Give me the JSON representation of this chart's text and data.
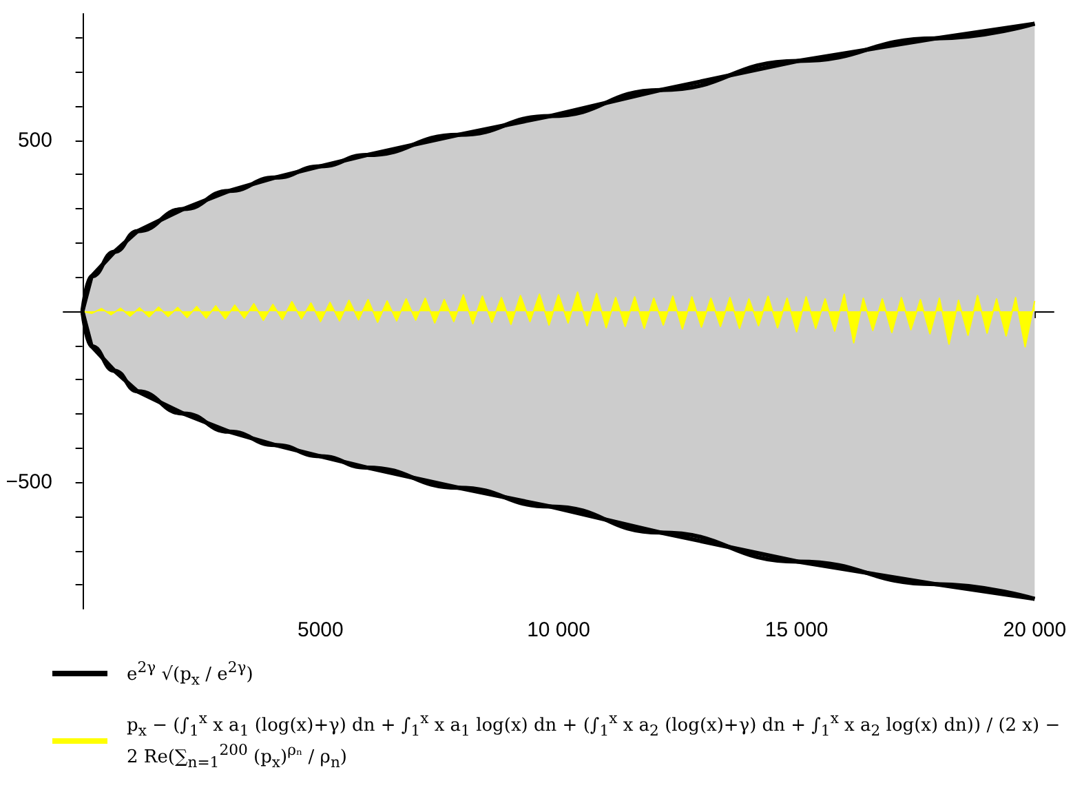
{
  "chart_data": {
    "type": "area",
    "xlim": [
      -400,
      20400
    ],
    "ylim": [
      -870,
      870
    ],
    "xticks": [
      {
        "value": 1000,
        "label": null
      },
      {
        "value": 2000,
        "label": null
      },
      {
        "value": 3000,
        "label": null
      },
      {
        "value": 4000,
        "label": null
      },
      5000,
      {
        "value": 6000,
        "label": null
      },
      {
        "value": 7000,
        "label": null
      },
      {
        "value": 8000,
        "label": null
      },
      {
        "value": 9000,
        "label": null
      },
      {
        "value": 10000,
        "label": "10 000"
      },
      {
        "value": 11000,
        "label": null
      },
      {
        "value": 12000,
        "label": null
      },
      {
        "value": 13000,
        "label": null
      },
      {
        "value": 14000,
        "label": null
      },
      {
        "value": 15000,
        "label": "15 000"
      },
      {
        "value": 16000,
        "label": null
      },
      {
        "value": 17000,
        "label": null
      },
      {
        "value": 18000,
        "label": null
      },
      {
        "value": 19000,
        "label": null
      },
      {
        "value": 20000,
        "label": "20 000"
      }
    ],
    "yticks": [
      {
        "value": -800,
        "label": null
      },
      {
        "value": -700,
        "label": null
      },
      {
        "value": -600,
        "label": null
      },
      {
        "value": -500,
        "label": "−500"
      },
      {
        "value": -400,
        "label": null
      },
      {
        "value": -300,
        "label": null
      },
      {
        "value": -200,
        "label": null
      },
      {
        "value": -100,
        "label": null
      },
      {
        "value": 100,
        "label": null
      },
      {
        "value": 200,
        "label": null
      },
      {
        "value": 300,
        "label": null
      },
      {
        "value": 400,
        "label": null
      },
      500,
      {
        "value": 600,
        "label": null
      },
      {
        "value": 700,
        "label": null
      },
      {
        "value": 800,
        "label": null
      }
    ],
    "grid": false,
    "legend": "bottom",
    "series": [
      {
        "name": "e$^{2γ}$ √(p$_{x}$ / e$^{2γ}$)",
        "color": "#000000",
        "x": [
          0,
          193,
          674,
          1156,
          2119,
          3083,
          4046,
          5000,
          5973,
          7899,
          9826,
          12139,
          15029,
          17919,
          20000
        ],
        "values": [
          0,
          102,
          174,
          234,
          299,
          352,
          391,
          424,
          457,
          516,
          571,
          647,
          732,
          798,
          841
        ]
      },
      {
        "color": "#000000",
        "x": [
          0,
          193,
          674,
          1156,
          2119,
          3083,
          4046,
          5000,
          5973,
          7899,
          9826,
          12139,
          15029,
          17919,
          20000
        ],
        "values": [
          0,
          -102,
          -174,
          -234,
          -299,
          -352,
          -391,
          -424,
          -457,
          -516,
          -571,
          -647,
          -732,
          -798,
          -841
        ]
      },
      {
        "name": "p$_{x}$ − (∫$_{1}$$^{x}$ x a$_{1}$ (log(x)+γ) dn + ∫$_{1}$$^{x}$ x a$_{1}$ log(x) dn + (∫$_{1}$$^{x}$ x a$_{2}$ (log(x)+γ) dn + ∫$_{1}$$^{x}$ x a$_{2}$ log(x) dn)) / (2 x) − 2 Re(∑$_{n=1}$$^{200}$ (p$_{x}$)$^{ρₙ}$ / ρ$_{n}$)",
        "color": "#ffff00",
        "x": [
          0,
          200,
          400,
          600,
          800,
          1000,
          1200,
          1400,
          1600,
          1800,
          2000,
          2200,
          2400,
          2600,
          2800,
          3000,
          3200,
          3400,
          3600,
          3800,
          4000,
          4200,
          4400,
          4600,
          4800,
          5000,
          5200,
          5400,
          5600,
          5800,
          6000,
          6200,
          6400,
          6600,
          6800,
          7000,
          7200,
          7400,
          7600,
          7800,
          8000,
          8200,
          8400,
          8600,
          8800,
          9000,
          9200,
          9400,
          9600,
          9800,
          10000,
          10200,
          10400,
          10600,
          10800,
          11000,
          11200,
          11400,
          11600,
          11800,
          12000,
          12200,
          12400,
          12600,
          12800,
          13000,
          13200,
          13400,
          13600,
          13800,
          14000,
          14200,
          14400,
          14600,
          14800,
          15000,
          15200,
          15400,
          15600,
          15800,
          16000,
          16200,
          16400,
          16600,
          16800,
          17000,
          17200,
          17400,
          17600,
          17800,
          18000,
          18200,
          18400,
          18600,
          18800,
          19000,
          19200,
          19400,
          19600,
          19800,
          20000
        ],
        "values": [
          0,
          -6,
          8,
          -10,
          9,
          -14,
          10,
          -16,
          12,
          -15,
          11,
          -18,
          14,
          -20,
          16,
          -22,
          18,
          -20,
          22,
          -26,
          20,
          -24,
          28,
          -22,
          24,
          -30,
          26,
          -28,
          32,
          -25,
          34,
          -32,
          30,
          -28,
          36,
          -26,
          38,
          -34,
          34,
          -30,
          48,
          -36,
          44,
          -32,
          40,
          -38,
          46,
          -30,
          50,
          -40,
          48,
          -34,
          56,
          -42,
          52,
          -48,
          40,
          -44,
          42,
          -50,
          38,
          -40,
          44,
          -52,
          42,
          -46,
          38,
          -44,
          40,
          -50,
          36,
          -42,
          44,
          -48,
          38,
          -60,
          42,
          -50,
          36,
          -58,
          50,
          -92,
          38,
          -56,
          36,
          -62,
          40,
          -54,
          34,
          -66,
          38,
          -96,
          32,
          -70,
          46,
          -64,
          36,
          -72,
          40,
          -104,
          30
        ]
      }
    ]
  }
}
